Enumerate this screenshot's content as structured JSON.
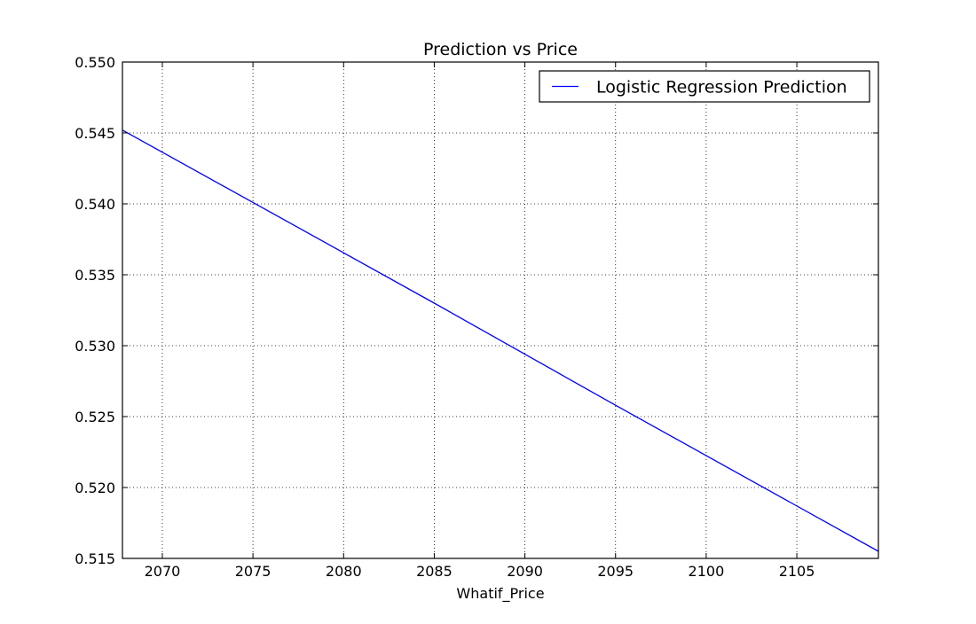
{
  "chart_data": {
    "type": "line",
    "title": "Prediction vs Price",
    "xlabel": "Whatif_Price",
    "ylabel": "",
    "xlim": [
      2067.8,
      2109.5
    ],
    "ylim": [
      0.515,
      0.55
    ],
    "x_ticks": [
      2070,
      2075,
      2080,
      2085,
      2090,
      2095,
      2100,
      2105
    ],
    "x_tick_labels": [
      "2070",
      "2075",
      "2080",
      "2085",
      "2090",
      "2095",
      "2100",
      "2105"
    ],
    "y_ticks": [
      0.515,
      0.52,
      0.525,
      0.53,
      0.535,
      0.54,
      0.545,
      0.55
    ],
    "y_tick_labels": [
      "0.515",
      "0.520",
      "0.525",
      "0.530",
      "0.535",
      "0.540",
      "0.545",
      "0.550"
    ],
    "grid": true,
    "legend_position": "top-right",
    "series": [
      {
        "name": "Logistic Regression Prediction",
        "color": "#0000ff",
        "x": [
          2067.8,
          2075,
          2085,
          2095,
          2109.5
        ],
        "y": [
          0.5452,
          0.5401,
          0.533,
          0.5258,
          0.5155
        ]
      }
    ]
  }
}
